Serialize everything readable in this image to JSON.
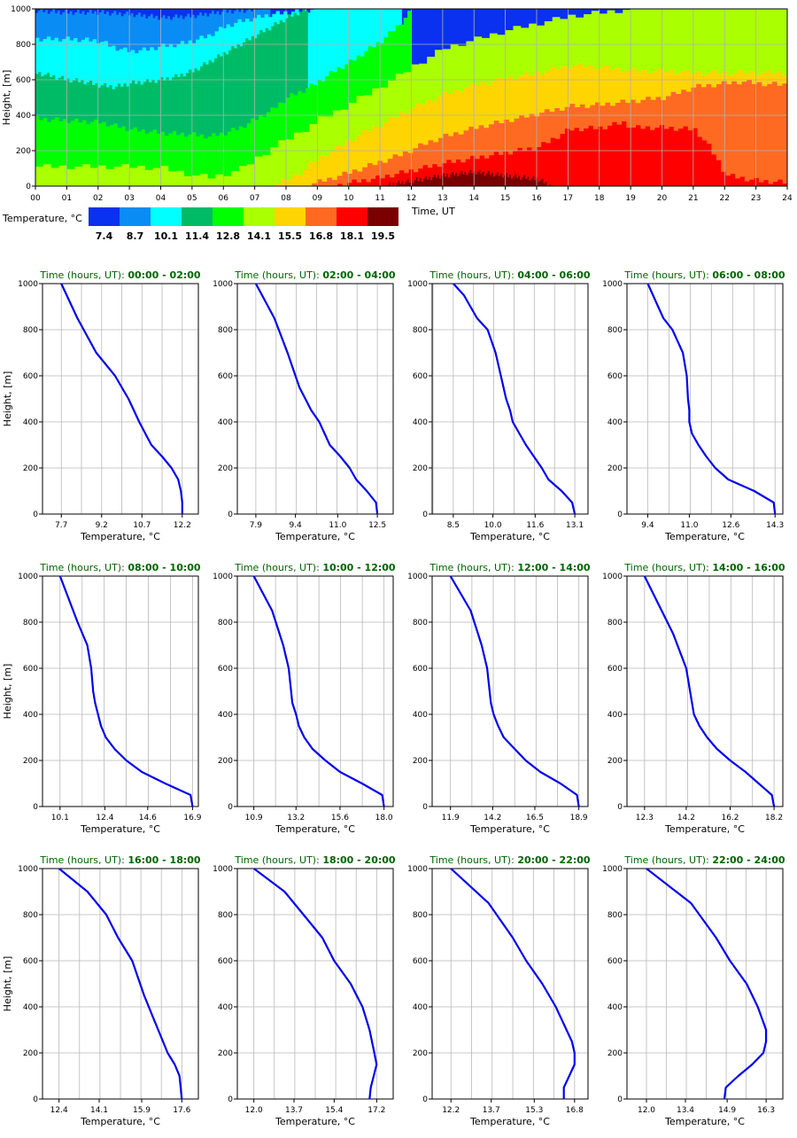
{
  "chart_data": [
    {
      "type": "heatmap",
      "xlabel": "Time, UT",
      "ylabel": "Height, [m]",
      "xlim": [
        0,
        24
      ],
      "ylim": [
        0,
        1000
      ],
      "x_tick_labels": [
        "00",
        "01",
        "02",
        "03",
        "04",
        "05",
        "06",
        "07",
        "08",
        "09",
        "10",
        "11",
        "12",
        "13",
        "14",
        "15",
        "16",
        "17",
        "18",
        "19",
        "20",
        "21",
        "22",
        "23",
        "24"
      ],
      "y_ticks": [
        0,
        200,
        400,
        600,
        800,
        1000
      ],
      "grid": true,
      "legend": {
        "title": "Temperature, °C",
        "bin_edges": [
          "7.4",
          "8.7",
          "10.1",
          "11.4",
          "12.8",
          "14.1",
          "15.5",
          "16.8",
          "18.1",
          "19.5"
        ],
        "colors": [
          "#0a30f0",
          "#0a8cf5",
          "#00ffff",
          "#00bb66",
          "#00ff00",
          "#aaff00",
          "#ffd500",
          "#ff6a22",
          "#ff0000",
          "#7a0000"
        ]
      },
      "isotherms": [
        {
          "x": [
            0,
            1,
            2,
            3,
            4,
            5,
            6,
            6.5,
            7,
            7.5
          ],
          "y": [
            990,
            980,
            980,
            970,
            950,
            960,
            985,
            990,
            995,
            1000
          ]
        },
        {
          "x": [
            0,
            1,
            2,
            2.5,
            3,
            3.5,
            4,
            4.5,
            5,
            5.5,
            6,
            6.5,
            7,
            7.5,
            8,
            8.5,
            9,
            10,
            11,
            11.7
          ],
          "y": [
            830,
            830,
            820,
            780,
            760,
            770,
            790,
            800,
            820,
            850,
            900,
            930,
            950,
            970,
            980,
            990,
            1000,
            1000,
            1000,
            1000
          ]
        },
        {
          "x": [
            0,
            0.5,
            1,
            1.5,
            2,
            2.5,
            3,
            3.5,
            4,
            4.5,
            5,
            5.5,
            6,
            6.5,
            7,
            7.5,
            8,
            8.3,
            8.7
          ],
          "y": [
            640,
            620,
            600,
            590,
            570,
            560,
            580,
            590,
            600,
            620,
            650,
            700,
            750,
            800,
            850,
            900,
            950,
            975,
            1000
          ]
        },
        {
          "x": [
            0,
            1,
            2,
            3,
            4,
            5,
            5.5,
            6,
            6.5,
            7,
            7.5,
            8,
            8.5,
            9,
            9.5,
            10,
            10.5,
            11,
            11.5,
            12
          ],
          "y": [
            380,
            370,
            360,
            320,
            300,
            290,
            280,
            300,
            330,
            380,
            430,
            500,
            540,
            590,
            650,
            700,
            760,
            820,
            900,
            1000
          ]
        },
        {
          "x": [
            0,
            3,
            4,
            4.5,
            5,
            5.5,
            6,
            6.5,
            7,
            7.5,
            8,
            8.5,
            9,
            9.5,
            10,
            10.5,
            11,
            11.5,
            12,
            12.5,
            13,
            14,
            15,
            16,
            17,
            18,
            19,
            20,
            21,
            22,
            23,
            24
          ],
          "y": [
            110,
            110,
            100,
            80,
            60,
            50,
            70,
            100,
            160,
            220,
            270,
            320,
            380,
            420,
            470,
            520,
            570,
            620,
            680,
            730,
            780,
            830,
            880,
            920,
            960,
            980,
            1000,
            1000,
            1000,
            1000,
            1000,
            1000
          ]
        },
        {
          "x": [
            7.5,
            8,
            8.5,
            9,
            9.5,
            10,
            10.5,
            11,
            11.5,
            12,
            12.5,
            13,
            14,
            15,
            16,
            17,
            18,
            19,
            20,
            21,
            22,
            23,
            24
          ],
          "y": [
            0,
            40,
            90,
            160,
            210,
            260,
            310,
            350,
            400,
            440,
            480,
            520,
            570,
            610,
            640,
            680,
            670,
            650,
            650,
            640,
            640,
            640,
            640
          ]
        },
        {
          "x": [
            8.5,
            9,
            9.5,
            10,
            10.5,
            11,
            11.5,
            12,
            12.5,
            13,
            14,
            15,
            16,
            17,
            18,
            19,
            20,
            21,
            22,
            22.5,
            23,
            24
          ],
          "y": [
            0,
            25,
            50,
            80,
            110,
            140,
            170,
            210,
            250,
            280,
            330,
            370,
            410,
            450,
            460,
            480,
            500,
            560,
            580,
            590,
            580,
            570
          ]
        },
        {
          "x": [
            9.5,
            10,
            11,
            12,
            13,
            14,
            15,
            16,
            16.5,
            17,
            18,
            18.7,
            19,
            20,
            21,
            21.5,
            22,
            23,
            24
          ],
          "y": [
            0,
            20,
            50,
            90,
            130,
            160,
            190,
            220,
            270,
            320,
            330,
            360,
            330,
            330,
            320,
            210,
            60,
            30,
            20
          ]
        },
        {
          "x": [
            11,
            12,
            13,
            14,
            15,
            16,
            16.5
          ],
          "y": [
            0,
            30,
            60,
            80,
            60,
            40,
            0
          ]
        }
      ]
    },
    {
      "type": "line",
      "title_prefix": "Time (hours, UT):",
      "title_range": "00:00 - 02:00",
      "xlabel": "Temperature, °C",
      "ylabel": "Height, [m]",
      "xlim": [
        7.0,
        12.8
      ],
      "x_ticks": [
        "7.7",
        "9.2",
        "10.7",
        "12.2"
      ],
      "y_ticks": [
        0,
        200,
        400,
        600,
        800,
        1000
      ],
      "grid": true,
      "color": "#0000ee",
      "x": [
        12.2,
        12.2,
        12.15,
        12.05,
        11.8,
        11.45,
        11.05,
        10.6,
        10.2,
        9.7,
        9.0,
        8.3,
        7.7
      ],
      "y": [
        0,
        50,
        100,
        150,
        200,
        250,
        300,
        400,
        500,
        600,
        700,
        850,
        1000
      ]
    },
    {
      "type": "line",
      "title_prefix": "Time (hours, UT):",
      "title_range": "02:00 - 04:00",
      "xlabel": "Temperature, °C",
      "ylabel": "",
      "xlim": [
        7.2,
        13.1
      ],
      "x_ticks": [
        "7.9",
        "9.4",
        "11.0",
        "12.5"
      ],
      "y_ticks": [
        0,
        200,
        400,
        600,
        800,
        1000
      ],
      "grid": true,
      "color": "#0000ee",
      "x": [
        12.5,
        12.45,
        12.1,
        11.7,
        11.45,
        11.1,
        10.7,
        10.3,
        10.0,
        9.55,
        9.1,
        8.6,
        7.9
      ],
      "y": [
        0,
        50,
        100,
        150,
        200,
        250,
        300,
        400,
        450,
        550,
        700,
        850,
        1000
      ]
    },
    {
      "type": "line",
      "title_prefix": "Time (hours, UT):",
      "title_range": "04:00 - 06:00",
      "xlabel": "Temperature, °C",
      "ylabel": "",
      "xlim": [
        7.7,
        13.6
      ],
      "x_ticks": [
        "8.5",
        "10.0",
        "11.6",
        "13.1"
      ],
      "y_ticks": [
        0,
        200,
        400,
        600,
        800,
        1000
      ],
      "grid": true,
      "color": "#0000ee",
      "x": [
        13.1,
        13.0,
        12.6,
        12.1,
        11.85,
        11.55,
        11.25,
        11.0,
        10.75,
        10.65,
        10.5,
        10.3,
        10.1,
        9.8,
        9.4,
        8.9,
        8.5
      ],
      "y": [
        0,
        50,
        100,
        150,
        200,
        250,
        300,
        350,
        400,
        450,
        500,
        600,
        700,
        800,
        850,
        950,
        1000
      ]
    },
    {
      "type": "line",
      "title_prefix": "Time (hours, UT):",
      "title_range": "06:00 - 08:00",
      "xlabel": "Temperature, °C",
      "ylabel": "",
      "xlim": [
        8.6,
        14.6
      ],
      "x_ticks": [
        "9.4",
        "11.0",
        "12.6",
        "14.3"
      ],
      "y_ticks": [
        0,
        200,
        400,
        600,
        800,
        1000
      ],
      "grid": true,
      "color": "#0000ee",
      "x": [
        14.3,
        14.25,
        13.5,
        12.5,
        12.0,
        11.65,
        11.35,
        11.1,
        11.0,
        11.0,
        10.95,
        10.9,
        10.75,
        10.35,
        10.0,
        9.8,
        9.4
      ],
      "y": [
        0,
        50,
        100,
        150,
        200,
        250,
        300,
        350,
        400,
        450,
        500,
        600,
        700,
        800,
        850,
        900,
        1000
      ]
    },
    {
      "type": "line",
      "title_prefix": "Time (hours, UT):",
      "title_range": "08:00 - 10:00",
      "xlabel": "Temperature, °C",
      "ylabel": "Height, [m]",
      "xlim": [
        9.2,
        17.2
      ],
      "x_ticks": [
        "10.1",
        "12.4",
        "14.6",
        "16.9"
      ],
      "y_ticks": [
        0,
        200,
        400,
        600,
        800,
        1000
      ],
      "grid": true,
      "color": "#0000ee",
      "x": [
        16.9,
        16.8,
        15.5,
        14.3,
        13.5,
        12.9,
        12.45,
        12.2,
        12.05,
        11.9,
        11.8,
        11.7,
        11.5,
        11.0,
        10.1
      ],
      "y": [
        0,
        50,
        100,
        150,
        200,
        250,
        300,
        350,
        400,
        450,
        500,
        600,
        700,
        800,
        1000
      ]
    },
    {
      "type": "line",
      "title_prefix": "Time (hours, UT):",
      "title_range": "10:00 - 12:00",
      "xlabel": "Temperature, °C",
      "ylabel": "",
      "xlim": [
        10.0,
        18.5
      ],
      "x_ticks": [
        "10.9",
        "13.2",
        "15.6",
        "18.0"
      ],
      "y_ticks": [
        0,
        200,
        400,
        600,
        800,
        1000
      ],
      "grid": true,
      "color": "#0000ee",
      "x": [
        18.0,
        17.9,
        16.8,
        15.6,
        14.8,
        14.1,
        13.65,
        13.35,
        13.2,
        13.0,
        12.8,
        12.5,
        11.9,
        10.9
      ],
      "y": [
        0,
        50,
        100,
        150,
        200,
        250,
        300,
        350,
        400,
        450,
        600,
        700,
        850,
        1000
      ]
    },
    {
      "type": "line",
      "title_prefix": "Time (hours, UT):",
      "title_range": "12:00 - 14:00",
      "xlabel": "Temperature, °C",
      "ylabel": "",
      "xlim": [
        10.9,
        19.4
      ],
      "x_ticks": [
        "11.9",
        "14.2",
        "16.5",
        "18.9"
      ],
      "y_ticks": [
        0,
        200,
        400,
        600,
        800,
        1000
      ],
      "grid": true,
      "color": "#0000ee",
      "x": [
        18.9,
        18.8,
        17.9,
        16.8,
        16.0,
        15.4,
        14.8,
        14.5,
        14.25,
        14.1,
        13.9,
        13.6,
        13.0,
        11.9
      ],
      "y": [
        0,
        50,
        100,
        150,
        200,
        250,
        300,
        350,
        400,
        450,
        600,
        700,
        850,
        1000
      ]
    },
    {
      "type": "line",
      "title_prefix": "Time (hours, UT):",
      "title_range": "14:00 - 16:00",
      "xlabel": "Temperature, °C",
      "ylabel": "",
      "xlim": [
        11.5,
        18.6
      ],
      "x_ticks": [
        "12.3",
        "14.2",
        "16.2",
        "18.2"
      ],
      "y_ticks": [
        0,
        200,
        400,
        600,
        800,
        1000
      ],
      "grid": true,
      "color": "#0000ee",
      "x": [
        18.2,
        18.1,
        17.5,
        16.9,
        16.2,
        15.6,
        15.15,
        14.8,
        14.55,
        14.2,
        13.6,
        12.3
      ],
      "y": [
        0,
        50,
        100,
        150,
        200,
        250,
        300,
        350,
        400,
        600,
        750,
        1000
      ]
    },
    {
      "type": "line",
      "title_prefix": "Time (hours, UT):",
      "title_range": "16:00 - 18:00",
      "xlabel": "Temperature, °C",
      "ylabel": "Height, [m]",
      "xlim": [
        11.7,
        18.3
      ],
      "x_ticks": [
        "12.4",
        "14.1",
        "15.9",
        "17.6"
      ],
      "y_ticks": [
        0,
        200,
        400,
        600,
        800,
        1000
      ],
      "grid": true,
      "color": "#0000ee",
      "x": [
        17.6,
        17.55,
        17.5,
        17.3,
        17.0,
        16.8,
        16.4,
        16.0,
        15.5,
        14.9,
        14.4,
        13.6,
        12.4
      ],
      "y": [
        0,
        50,
        100,
        150,
        200,
        250,
        350,
        450,
        600,
        700,
        800,
        900,
        1000
      ]
    },
    {
      "type": "line",
      "title_prefix": "Time (hours, UT):",
      "title_range": "18:00 - 20:00",
      "xlabel": "Temperature, °C",
      "ylabel": "",
      "xlim": [
        11.3,
        17.9
      ],
      "x_ticks": [
        "12.0",
        "13.7",
        "15.4",
        "17.2"
      ],
      "y_ticks": [
        0,
        200,
        400,
        600,
        800,
        1000
      ],
      "grid": true,
      "color": "#0000ee",
      "x": [
        16.9,
        16.95,
        17.2,
        17.1,
        16.9,
        16.6,
        16.1,
        15.4,
        14.9,
        14.1,
        13.3,
        12.0
      ],
      "y": [
        0,
        50,
        150,
        200,
        300,
        400,
        500,
        600,
        700,
        800,
        900,
        1000
      ]
    },
    {
      "type": "line",
      "title_prefix": "Time (hours, UT):",
      "title_range": "20:00 - 22:00",
      "xlabel": "Temperature, °C",
      "ylabel": "",
      "xlim": [
        11.5,
        17.3
      ],
      "x_ticks": [
        "12.2",
        "13.7",
        "15.3",
        "16.8"
      ],
      "y_ticks": [
        0,
        200,
        400,
        600,
        800,
        1000
      ],
      "grid": true,
      "color": "#0000ee",
      "x": [
        16.4,
        16.4,
        16.6,
        16.8,
        16.8,
        16.7,
        16.5,
        16.1,
        15.6,
        15.0,
        14.5,
        13.6,
        12.2
      ],
      "y": [
        0,
        50,
        100,
        150,
        200,
        250,
        300,
        400,
        500,
        600,
        700,
        850,
        1000
      ]
    },
    {
      "type": "line",
      "title_prefix": "Time (hours, UT):",
      "title_range": "22:00 - 24:00",
      "xlabel": "Temperature, °C",
      "ylabel": "",
      "xlim": [
        11.3,
        16.9
      ],
      "x_ticks": [
        "12.0",
        "13.4",
        "14.9",
        "16.3"
      ],
      "y_ticks": [
        0,
        200,
        400,
        600,
        800,
        1000
      ],
      "grid": true,
      "color": "#0000ee",
      "x": [
        14.8,
        14.85,
        15.3,
        15.8,
        16.2,
        16.3,
        16.3,
        16.0,
        15.6,
        15.0,
        14.5,
        13.6,
        12.0
      ],
      "y": [
        0,
        50,
        100,
        150,
        200,
        250,
        300,
        400,
        500,
        600,
        700,
        850,
        1000
      ]
    }
  ]
}
